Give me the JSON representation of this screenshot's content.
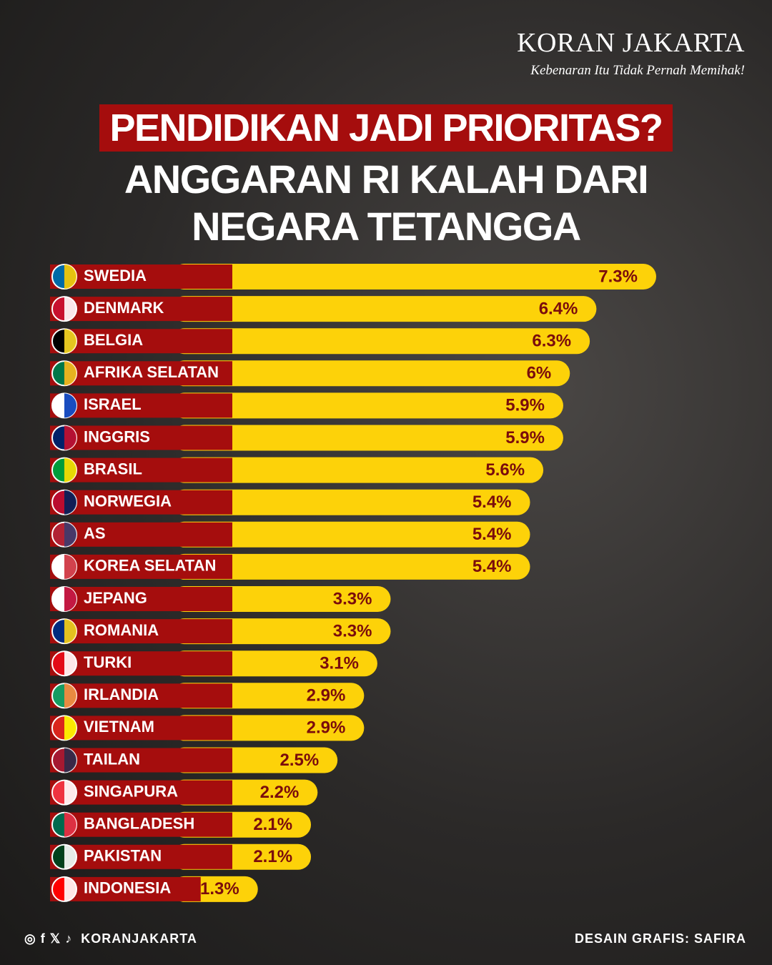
{
  "brand": {
    "name": "KORAN JAKARTA",
    "tagline": "Kebenaran Itu Tidak Pernah Memihak!"
  },
  "chart_data": {
    "type": "bar",
    "orientation": "horizontal",
    "title": "PENDIDIKAN JADI PRIORITAS?",
    "subtitle": "ANGGARAN RI KALAH DARI NEGARA TETANGGA",
    "categories": [
      "SWEDIA",
      "DENMARK",
      "BELGIA",
      "AFRIKA SELATAN",
      "ISRAEL",
      "INGGRIS",
      "BRASIL",
      "NORWEGIA",
      "AS",
      "KOREA SELATAN",
      "JEPANG",
      "ROMANIA",
      "TURKI",
      "IRLANDIA",
      "VIETNAM",
      "TAILAN",
      "SINGAPURA",
      "BANGLADESH",
      "PAKISTAN",
      "INDONESIA"
    ],
    "values": [
      7.3,
      6.4,
      6.3,
      6,
      5.9,
      5.9,
      5.6,
      5.4,
      5.4,
      5.4,
      3.3,
      3.3,
      3.1,
      2.9,
      2.9,
      2.5,
      2.2,
      2.1,
      2.1,
      1.3
    ],
    "value_labels": [
      "7.3%",
      "6.4%",
      "6.3%",
      "6%",
      "5.9%",
      "5.9%",
      "5.6%",
      "5.4%",
      "5.4%",
      "5.4%",
      "3.3%",
      "3.3%",
      "3.1%",
      "2.9%",
      "2.9%",
      "2.5%",
      "2.2%",
      "2.1%",
      "2.1%",
      "1.3%"
    ],
    "color": "#fdd209",
    "label_band_color": "#a50d0d",
    "ylim": [
      0,
      8
    ]
  },
  "footer": {
    "social": "KORANJAKARTA",
    "credit": "DESAIN GRAFIS: SAFIRA"
  }
}
